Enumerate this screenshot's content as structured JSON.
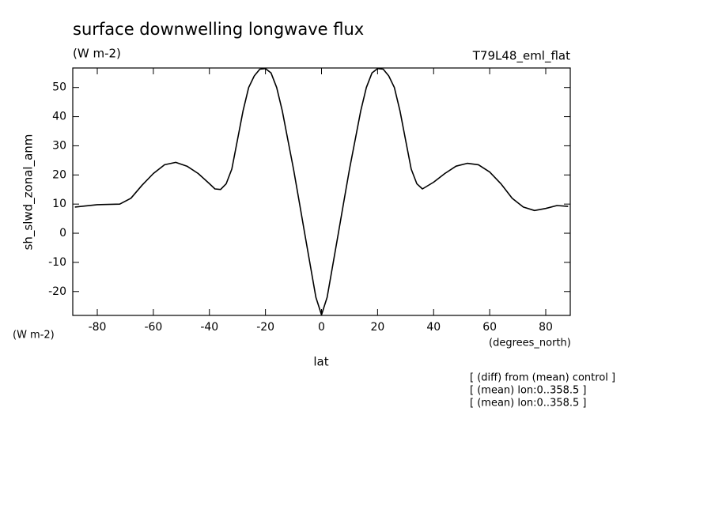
{
  "chart_data": {
    "type": "line",
    "title": "surface downwelling longwave flux",
    "subtitle": "(W m-2)",
    "run_label": "T79L48_eml_flat",
    "y_axis_label": "sh_slwd_zonal_anm",
    "y_units": "(W m-2)",
    "x_units": "(degrees_north)",
    "x_axis_label": "lat",
    "notes": [
      "[ (diff) from (mean) control ]",
      "[ (mean) lon:0..358.5 ]",
      "[ (mean) lon:0..358.5 ]"
    ],
    "x": [
      -88,
      -80,
      -72,
      -68,
      -64,
      -60,
      -56,
      -52,
      -48,
      -44,
      -40,
      -38,
      -36,
      -34,
      -32,
      -30,
      -28,
      -26,
      -24,
      -22,
      -20,
      -18,
      -16,
      -14,
      -12,
      -10,
      -8,
      -6,
      -4,
      -2,
      0,
      2,
      4,
      6,
      8,
      10,
      12,
      14,
      16,
      18,
      20,
      22,
      24,
      26,
      28,
      30,
      32,
      34,
      36,
      40,
      44,
      48,
      52,
      56,
      60,
      64,
      68,
      72,
      76,
      80,
      84,
      88
    ],
    "series": [
      {
        "name": "sh_slwd_zonal_anm",
        "color": "#000000",
        "values": [
          9,
          9.8,
          10,
          12,
          16.5,
          20.5,
          23.5,
          24.3,
          23,
          20.5,
          17,
          15.2,
          15,
          17,
          22,
          32,
          42,
          50,
          54,
          56.3,
          56.5,
          55,
          50,
          42,
          32,
          22,
          11,
          0,
          -11,
          -22,
          -28,
          -22,
          -11,
          0,
          11,
          22,
          32,
          42,
          50,
          55,
          56.5,
          56.3,
          54,
          50,
          42,
          32,
          22,
          17,
          15.2,
          17.5,
          20.5,
          23,
          24,
          23.5,
          21,
          17,
          12,
          9,
          7.8,
          8.5,
          9.5,
          9.2
        ]
      }
    ],
    "xlim": [
      -88.75,
      88.75
    ],
    "ylim": [
      -28.2,
      56.7
    ],
    "xticks": [
      -80,
      -60,
      -40,
      -20,
      0,
      20,
      40,
      60,
      80
    ],
    "yticks": [
      -20,
      -10,
      0,
      10,
      20,
      30,
      40,
      50
    ]
  }
}
